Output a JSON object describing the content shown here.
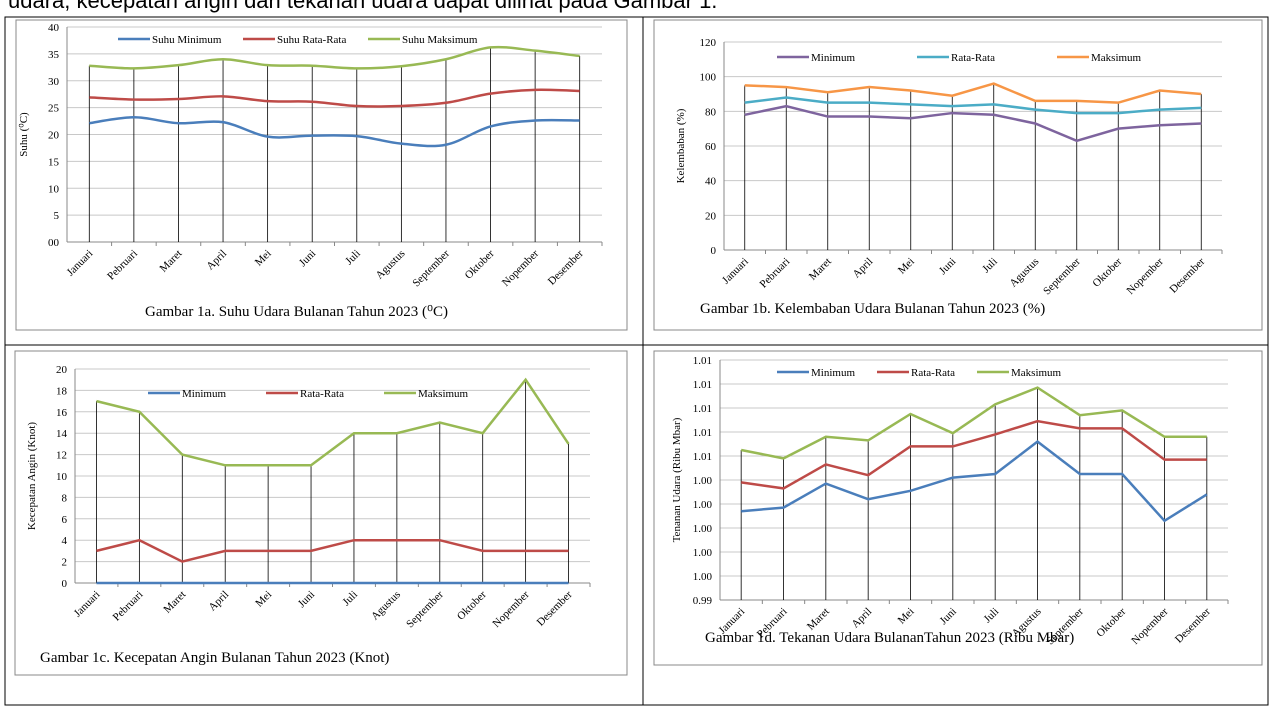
{
  "header_text": "udara, kecepatan angin dan tekanan udara dapat dilihat pada Gambar 1.",
  "chart_data": [
    {
      "type": "line",
      "caption": "Gambar 1a. Suhu Udara Bulanan Tahun 2023 (⁰C)",
      "ylabel": "Suhu (⁰C)",
      "categories": [
        "Januari",
        "Pebruari",
        "Maret",
        "April",
        "Mei",
        "Juni",
        "Juli",
        "Agustus",
        "September",
        "Oktober",
        "Nopember",
        "Desember"
      ],
      "series": [
        {
          "name": "Suhu Minimum",
          "color": "#4a7ebb",
          "values": [
            22.1,
            23.2,
            22.1,
            22.3,
            19.6,
            19.8,
            19.7,
            18.3,
            18.1,
            21.5,
            22.6,
            22.6
          ]
        },
        {
          "name": "Suhu Rata-Rata",
          "color": "#be4b48",
          "values": [
            26.9,
            26.5,
            26.6,
            27.1,
            26.2,
            26.1,
            25.3,
            25.3,
            25.9,
            27.6,
            28.3,
            28.1
          ]
        },
        {
          "name": "Suhu Maksimum",
          "color": "#98b954",
          "values": [
            32.8,
            32.3,
            32.9,
            34.0,
            32.9,
            32.8,
            32.3,
            32.7,
            34.0,
            36.2,
            35.6,
            34.6
          ]
        }
      ],
      "ylim": [
        0,
        40
      ],
      "yticks": [
        {
          "value": 0,
          "label": "00"
        },
        5,
        10,
        15,
        20,
        25,
        30,
        35,
        40
      ],
      "grid": true,
      "smooth": true,
      "drop_lines": true,
      "legend": "top"
    },
    {
      "type": "line",
      "caption": "Gambar 1b. Kelembaban Udara Bulanan Tahun 2023 (%)",
      "ylabel": "Kelembaban (%)",
      "categories": [
        "Januari",
        "Pebruari",
        "Maret",
        "April",
        "Mei",
        "Juni",
        "Juli",
        "Agustus",
        "September",
        "Oktober",
        "Nopember",
        "Desember"
      ],
      "series": [
        {
          "name": "Minimum",
          "color": "#7e649e",
          "values": [
            78,
            83,
            77,
            77,
            76,
            79,
            78,
            73,
            63,
            70,
            72,
            73
          ]
        },
        {
          "name": "Rata-Rata",
          "color": "#4bacc6",
          "values": [
            85,
            88,
            85,
            85,
            84,
            83,
            84,
            81,
            79,
            79,
            81,
            82
          ]
        },
        {
          "name": "Maksimum",
          "color": "#f79646",
          "values": [
            95,
            94,
            91,
            94,
            92,
            89,
            96,
            86,
            86,
            85,
            92,
            90
          ]
        }
      ],
      "ylim": [
        0,
        120
      ],
      "yticks": [
        0,
        20,
        40,
        60,
        80,
        100,
        120
      ],
      "grid": true,
      "smooth": false,
      "drop_lines": true,
      "legend": "top"
    },
    {
      "type": "line",
      "caption": "Gambar 1c. Kecepatan Angin Bulanan Tahun 2023 (Knot)",
      "ylabel": "Kecepatan Angin (Knot)",
      "categories": [
        "Januari",
        "Pebruari",
        "Maret",
        "April",
        "Mei",
        "Juni",
        "Juli",
        "Agustus",
        "September",
        "Oktober",
        "Nopember",
        "Desember"
      ],
      "series": [
        {
          "name": "Minimum",
          "color": "#4a7ebb",
          "values": [
            0,
            0,
            0,
            0,
            0,
            0,
            0,
            0,
            0,
            0,
            0,
            0
          ]
        },
        {
          "name": "Rata-Rata",
          "color": "#be4b48",
          "values": [
            3,
            4,
            2,
            3,
            3,
            3,
            4,
            4,
            4,
            3,
            3,
            3
          ]
        },
        {
          "name": "Maksimum",
          "color": "#98b954",
          "values": [
            17,
            16,
            12,
            11,
            11,
            11,
            14,
            14,
            15,
            14,
            19,
            13
          ]
        }
      ],
      "ylim": [
        0,
        20
      ],
      "yticks": [
        0,
        2,
        4,
        6,
        8,
        10,
        12,
        14,
        16,
        18,
        20
      ],
      "grid": true,
      "smooth": false,
      "drop_lines": true,
      "legend": "top"
    },
    {
      "type": "line",
      "caption": "Gambar 1d. Tekanan Udara BulananTahun 2023 (Ribu Mbar)",
      "ylabel": "Tenanan Udara (Ribu Mbar)",
      "categories": [
        "Januari",
        "Pebruari",
        "Maret",
        "April",
        "Mei",
        "Juni",
        "Juli",
        "Agustus",
        "September",
        "Oktober",
        "Nopember",
        "Desember"
      ],
      "series": [
        {
          "name": "Minimum",
          "color": "#4a7ebb",
          "values": [
            1.0014,
            1.0017,
            1.0037,
            1.0024,
            1.0031,
            1.0042,
            1.0045,
            1.0072,
            1.0045,
            1.0045,
            1.0006,
            1.0028
          ]
        },
        {
          "name": "Rata-Rata",
          "color": "#be4b48",
          "values": [
            1.0038,
            1.0033,
            1.0053,
            1.0044,
            1.0068,
            1.0068,
            1.0078,
            1.0089,
            1.0083,
            1.0083,
            1.0057,
            1.0057
          ]
        },
        {
          "name": "Maksimum",
          "color": "#98b954",
          "values": [
            1.0065,
            1.0058,
            1.0076,
            1.0073,
            1.0095,
            1.0079,
            1.0103,
            1.0117,
            1.0094,
            1.0098,
            1.0076,
            1.0076
          ]
        }
      ],
      "ylim": [
        0.994,
        1.014
      ],
      "yticks": [
        {
          "value": 0.994,
          "label": "0.99"
        },
        {
          "value": 0.996,
          "label": "1.00"
        },
        {
          "value": 0.998,
          "label": "1.00"
        },
        {
          "value": 1.0,
          "label": "1.00"
        },
        {
          "value": 1.002,
          "label": "1.00"
        },
        {
          "value": 1.004,
          "label": "1.00"
        },
        {
          "value": 1.006,
          "label": "1.01"
        },
        {
          "value": 1.008,
          "label": "1.01"
        },
        {
          "value": 1.01,
          "label": "1.01"
        },
        {
          "value": 1.012,
          "label": "1.01"
        },
        {
          "value": 1.014,
          "label": "1.01"
        }
      ],
      "grid": true,
      "smooth": false,
      "drop_lines": true,
      "legend": "top"
    }
  ]
}
